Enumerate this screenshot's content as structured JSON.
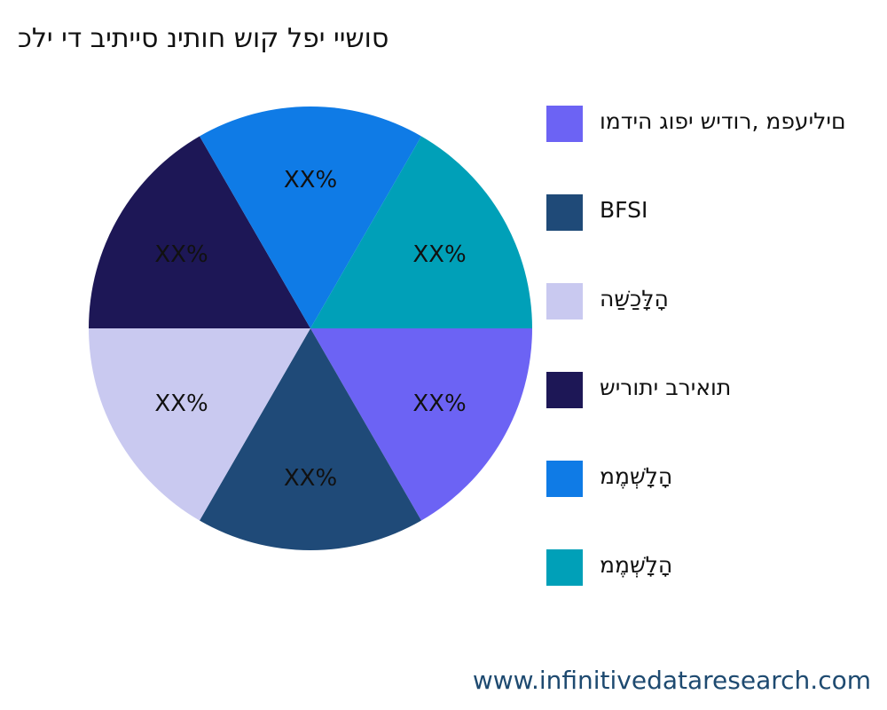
{
  "title": "סושיי יפל קוש חותינ סייתיב די ילכ",
  "footer": "www.infinitivedataresearch.com",
  "chart_data": {
    "type": "pie",
    "title": "סושיי יפל קוש חותינ סייתיב די ילכ",
    "legend_position": "right",
    "slices": [
      {
        "name": "םיליעפמ ,רודיש יפוג הידמו",
        "value": 16.67,
        "label": "XX%",
        "color": "#6c63f4"
      },
      {
        "name": "BFSI",
        "value": 16.67,
        "label": "XX%",
        "color": "#1f4a78"
      },
      {
        "name": "הָלָּכַשַׁה",
        "value": 16.67,
        "label": "XX%",
        "color": "#c9c9f0"
      },
      {
        "name": "תואירב יתוריש",
        "value": 16.67,
        "label": "XX%",
        "color": "#1d1756"
      },
      {
        "name": "הָלָשְׁמֶמ",
        "value": 16.67,
        "label": "XX%",
        "color": "#0f7be6"
      },
      {
        "name": "הָלָשְׁמֶמ",
        "value": 16.67,
        "label": "XX%",
        "color": "#00a0b8"
      }
    ]
  }
}
